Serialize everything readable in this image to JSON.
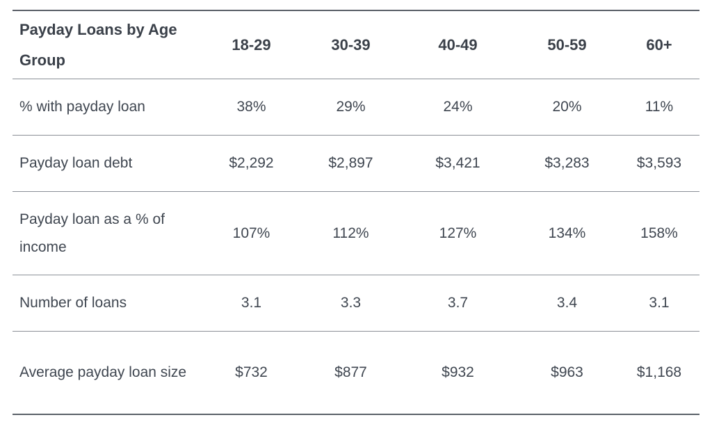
{
  "table": {
    "title": "Payday Loans by Age Group",
    "columns": [
      "18-29",
      "30-39",
      "40-49",
      "50-59",
      "60+"
    ],
    "rows": [
      {
        "label": "% with payday loan",
        "values": [
          "38%",
          "29%",
          "24%",
          "20%",
          "11%"
        ]
      },
      {
        "label": "Payday loan debt",
        "values": [
          "$2,292",
          "$2,897",
          "$3,421",
          "$3,283",
          "$3,593"
        ]
      },
      {
        "label": "Payday loan as a % of income",
        "values": [
          "107%",
          "112%",
          "127%",
          "134%",
          "158%"
        ]
      },
      {
        "label": "Number of loans",
        "values": [
          "3.1",
          "3.3",
          "3.7",
          "3.4",
          "3.1"
        ]
      },
      {
        "label": "Average payday loan size",
        "values": [
          "$732",
          "$877",
          "$932",
          "$963",
          "$1,168"
        ]
      }
    ]
  },
  "colors": {
    "text": "#3f4650",
    "rule": "#8a8f96",
    "rule_strong": "#5a6068"
  }
}
